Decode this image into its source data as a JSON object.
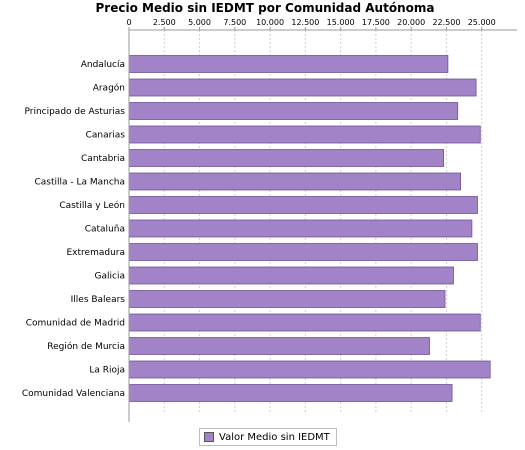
{
  "chart_data": {
    "type": "bar",
    "orientation": "horizontal",
    "title": "Precio Medio sin IEDMT por Comunidad Autónoma",
    "categories": [
      "Andalucía",
      "Aragón",
      "Principado de Asturias",
      "Canarias",
      "Cantabria",
      "Castilla - La Mancha",
      "Castilla y León",
      "Cataluña",
      "Extremadura",
      "Galicia",
      "Illes Balears",
      "Comunidad de Madrid",
      "Región de Murcia",
      "La Rioja",
      "Comunidad Valenciana"
    ],
    "series": [
      {
        "name": "Valor Medio sin IEDMT",
        "color": "#a283c8",
        "values": [
          22600,
          24600,
          23300,
          24900,
          22300,
          23500,
          24700,
          24300,
          24700,
          23000,
          22400,
          24900,
          21300,
          25600,
          22900
        ]
      }
    ],
    "xlim": [
      0,
      27500
    ],
    "xticks": [
      0,
      2500,
      5000,
      7500,
      10000,
      12500,
      15000,
      17500,
      20000,
      22500,
      25000
    ],
    "xtick_labels": [
      "0",
      "2.500",
      "5.000",
      "7.500",
      "10.000",
      "12.500",
      "15.000",
      "17.500",
      "20.000",
      "22.500",
      "25.000"
    ],
    "axis_position": "top",
    "grid": "vertical dashed",
    "legend_position": "bottom-center"
  }
}
